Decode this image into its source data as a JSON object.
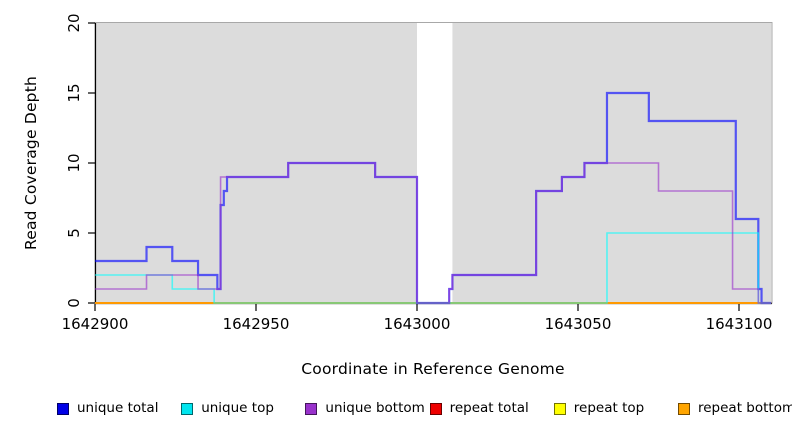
{
  "chart_data": {
    "type": "line",
    "subtype": "step-coverage-plot",
    "title": "",
    "xlabel": "Coordinate in Reference Genome",
    "ylabel": "Read Coverage Depth",
    "xlim": [
      1642900,
      1643110
    ],
    "ylim": [
      0,
      20
    ],
    "x_ticks": [
      1642900,
      1642950,
      1643000,
      1643050,
      1643100
    ],
    "y_ticks": [
      0,
      5,
      10,
      15,
      20
    ],
    "grid": "off",
    "legend_position": "bottom",
    "covered_background_color": "#DCDCDC",
    "plot_border_color": "#A8A8A8",
    "coverage_regions": [
      [
        1642900,
        1643000
      ],
      [
        1643011,
        1643110
      ]
    ],
    "draw_order": [
      "repeat_total",
      "repeat_top",
      "repeat_bottom",
      "unique_total",
      "unique_top",
      "unique_bottom"
    ],
    "series": [
      {
        "key": "unique_total",
        "name": "unique total",
        "color": "#0000FF",
        "legend_color": "#0000E6",
        "opacity": 0.62,
        "width": 2.2,
        "points": [
          [
            1642900,
            3
          ],
          [
            1642916,
            4
          ],
          [
            1642924,
            3
          ],
          [
            1642932,
            2
          ],
          [
            1642938,
            1
          ],
          [
            1642939,
            7
          ],
          [
            1642940,
            8
          ],
          [
            1642941,
            9
          ],
          [
            1642960,
            10
          ],
          [
            1642987,
            9
          ],
          [
            1643000,
            0
          ],
          [
            1643010,
            1
          ],
          [
            1643011,
            2
          ],
          [
            1643037,
            8
          ],
          [
            1643045,
            9
          ],
          [
            1643052,
            10
          ],
          [
            1643059,
            15
          ],
          [
            1643072,
            13
          ],
          [
            1643099,
            6
          ],
          [
            1643106,
            1
          ],
          [
            1643107,
            0
          ],
          [
            1643110,
            0
          ]
        ]
      },
      {
        "key": "unique_top",
        "name": "unique top",
        "color": "#00FFFF",
        "legend_color": "#00E5EE",
        "opacity": 0.62,
        "width": 1.6,
        "points": [
          [
            1642900,
            2
          ],
          [
            1642924,
            1
          ],
          [
            1642937,
            0
          ],
          [
            1643059,
            5
          ],
          [
            1643106,
            0
          ],
          [
            1643110,
            0
          ]
        ]
      },
      {
        "key": "unique_bottom",
        "name": "unique bottom",
        "color": "#9932CC",
        "legend_color": "#9932CC",
        "opacity": 0.62,
        "width": 1.6,
        "points": [
          [
            1642900,
            1
          ],
          [
            1642916,
            2
          ],
          [
            1642932,
            1
          ],
          [
            1642939,
            9
          ],
          [
            1642960,
            10
          ],
          [
            1642987,
            9
          ],
          [
            1643000,
            0
          ],
          [
            1643010,
            1
          ],
          [
            1643011,
            2
          ],
          [
            1643037,
            8
          ],
          [
            1643045,
            9
          ],
          [
            1643052,
            10
          ],
          [
            1643075,
            8
          ],
          [
            1643098,
            1
          ],
          [
            1643106,
            0
          ],
          [
            1643110,
            0
          ]
        ]
      },
      {
        "key": "repeat_total",
        "name": "repeat total",
        "color": "#DD0000",
        "legend_color": "#EE0000",
        "opacity": 1,
        "width": 1.6,
        "points": [
          [
            1642900,
            0
          ],
          [
            1643110,
            0
          ]
        ]
      },
      {
        "key": "repeat_top",
        "name": "repeat top",
        "color": "#FFFF00",
        "legend_color": "#FFFF00",
        "opacity": 1,
        "width": 1.6,
        "points": [
          [
            1642900,
            0
          ],
          [
            1643110,
            0
          ]
        ]
      },
      {
        "key": "repeat_bottom",
        "name": "repeat bottom",
        "color": "#FF9900",
        "legend_color": "#FFA500",
        "opacity": 1,
        "width": 2,
        "points": [
          [
            1642900,
            0
          ],
          [
            1643110,
            0
          ]
        ]
      }
    ]
  }
}
